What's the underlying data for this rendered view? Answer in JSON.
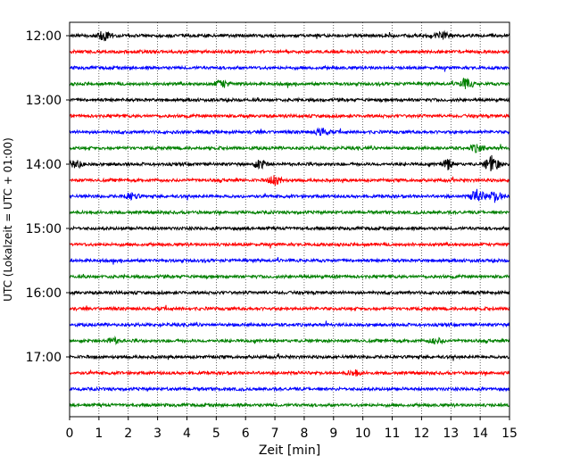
{
  "chart_data": {
    "type": "line",
    "title": "",
    "xlabel": "Zeit  [min]",
    "ylabel": "UTC (Lokalzeit = UTC + 01:00)",
    "xlim": [
      0,
      15
    ],
    "x_ticks": [
      0,
      1,
      2,
      3,
      4,
      5,
      6,
      7,
      8,
      9,
      10,
      11,
      12,
      13,
      14,
      15
    ],
    "y_tick_labels": [
      "12:00",
      "13:00",
      "14:00",
      "15:00",
      "16:00",
      "17:00"
    ],
    "grid": "vertical dotted",
    "row_interval_min": 15,
    "trace_colors": [
      "#000000",
      "#ff0000",
      "#0000ff",
      "#008000"
    ],
    "traces": [
      {
        "start": "12:00",
        "color": "#000000"
      },
      {
        "start": "12:15",
        "color": "#ff0000"
      },
      {
        "start": "12:30",
        "color": "#0000ff"
      },
      {
        "start": "12:45",
        "color": "#008000"
      },
      {
        "start": "13:00",
        "color": "#000000"
      },
      {
        "start": "13:15",
        "color": "#ff0000"
      },
      {
        "start": "13:30",
        "color": "#0000ff"
      },
      {
        "start": "13:45",
        "color": "#008000"
      },
      {
        "start": "14:00",
        "color": "#000000"
      },
      {
        "start": "14:15",
        "color": "#ff0000"
      },
      {
        "start": "14:30",
        "color": "#0000ff"
      },
      {
        "start": "14:45",
        "color": "#008000"
      },
      {
        "start": "15:00",
        "color": "#000000"
      },
      {
        "start": "15:15",
        "color": "#ff0000"
      },
      {
        "start": "15:30",
        "color": "#0000ff"
      },
      {
        "start": "15:45",
        "color": "#008000"
      },
      {
        "start": "16:00",
        "color": "#000000"
      },
      {
        "start": "16:15",
        "color": "#ff0000"
      },
      {
        "start": "16:30",
        "color": "#0000ff"
      },
      {
        "start": "16:45",
        "color": "#008000"
      },
      {
        "start": "17:00",
        "color": "#000000"
      },
      {
        "start": "17:15",
        "color": "#ff0000"
      },
      {
        "start": "17:30",
        "color": "#0000ff"
      },
      {
        "start": "17:45",
        "color": "#008000"
      }
    ]
  }
}
